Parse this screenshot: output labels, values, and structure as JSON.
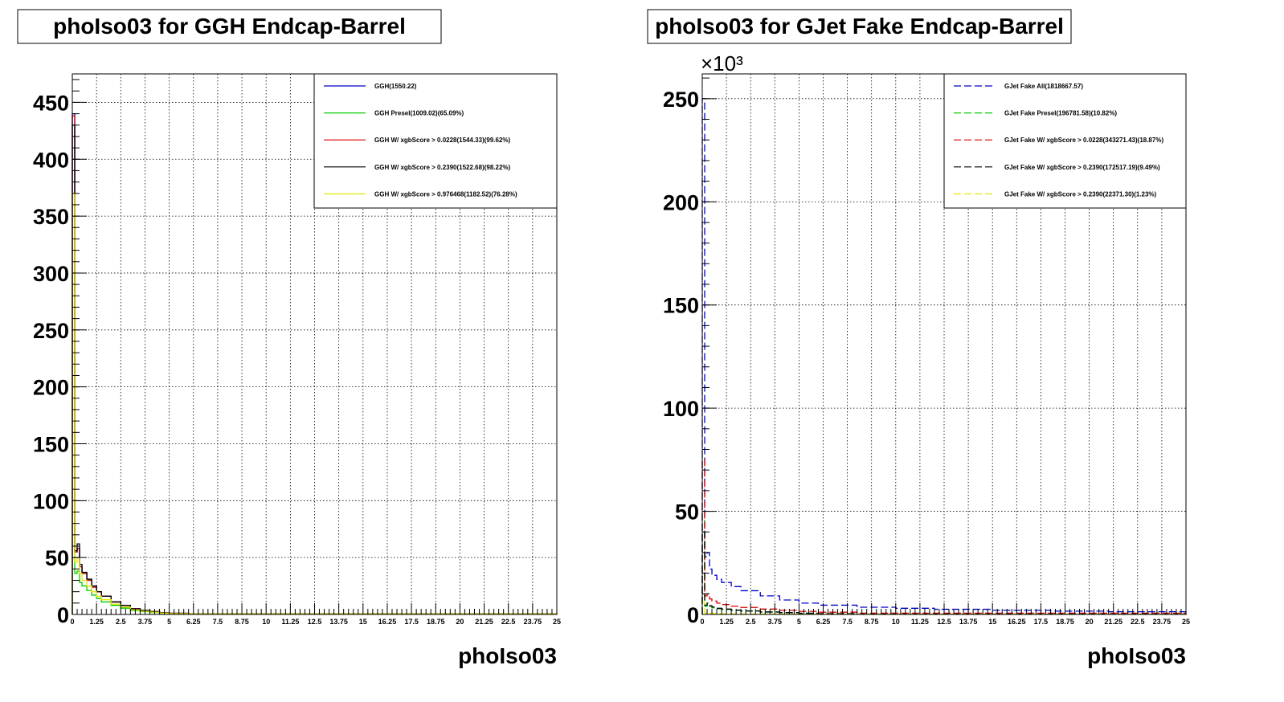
{
  "chart_data": [
    {
      "type": "line",
      "title": "phoIso03 for GGH Endcap-Barrel",
      "xlabel": "phoIso03",
      "ylabel": "",
      "xlim": [
        0,
        25
      ],
      "ylim": [
        0,
        475
      ],
      "x_ticks": [
        "0",
        "1.25",
        "2.5",
        "3.75",
        "5",
        "6.25",
        "7.5",
        "8.75",
        "10",
        "11.25",
        "12.5",
        "13.75",
        "15",
        "16.25",
        "17.5",
        "18.75",
        "20",
        "21.25",
        "22.5",
        "23.75",
        "25"
      ],
      "y_ticks": [
        "0",
        "50",
        "100",
        "150",
        "200",
        "250",
        "300",
        "350",
        "400",
        "450"
      ],
      "y_exponent": "",
      "grid": true,
      "legend_position": "top-right",
      "series": [
        {
          "name": "GGH(1550.22)",
          "color": "#0000cc",
          "style": "solid",
          "x": [
            0.0,
            0.125,
            0.25,
            0.375,
            0.5,
            0.75,
            1.0,
            1.25,
            1.5,
            2.0,
            2.5,
            3.0,
            3.5,
            4.0,
            4.5,
            5.0,
            6.0,
            25.0
          ],
          "y": [
            440,
            55,
            58,
            42,
            36,
            30,
            24,
            20,
            16,
            11,
            8,
            5,
            3.5,
            2.5,
            1.5,
            1,
            0.5,
            0
          ]
        },
        {
          "name": "GGH Presel(1009.02)(65.09%)",
          "color": "#00cc00",
          "style": "solid",
          "x": [
            0.0,
            0.125,
            0.25,
            0.375,
            0.5,
            0.75,
            1.0,
            1.25,
            1.5,
            2.0,
            2.5,
            3.0,
            3.5,
            4.0,
            4.5,
            5.0,
            6.0,
            25.0
          ],
          "y": [
            300,
            36,
            38,
            28,
            25,
            21,
            17,
            14,
            11,
            8,
            5.5,
            3.5,
            2.5,
            1.7,
            1,
            0.7,
            0.3,
            0
          ]
        },
        {
          "name": "GGH W/ xgbScore > 0.0228(1544.33)(99.62%)",
          "color": "#dd0000",
          "style": "solid",
          "x": [
            0.0,
            0.125,
            0.25,
            0.375,
            0.5,
            0.75,
            1.0,
            1.25,
            1.5,
            2.0,
            2.5,
            3.0,
            3.5,
            4.0,
            4.5,
            5.0,
            6.0,
            25.0
          ],
          "y": [
            438,
            55,
            58,
            42,
            36,
            30,
            24,
            20,
            16,
            11,
            8,
            5,
            3.5,
            2.5,
            1.5,
            1,
            0.5,
            0
          ]
        },
        {
          "name": "GGH W/ xgbScore > 0.2390(1522.68)(98.22%)",
          "color": "#000000",
          "style": "solid",
          "x": [
            0.0,
            0.125,
            0.25,
            0.375,
            0.5,
            0.75,
            1.0,
            1.25,
            1.5,
            2.0,
            2.5,
            3.0,
            3.5,
            4.0,
            4.5,
            5.0,
            6.0,
            25.0
          ],
          "y": [
            430,
            56,
            62,
            44,
            37,
            31,
            25,
            20,
            16,
            11,
            8,
            5,
            3.5,
            2.5,
            1.5,
            1,
            0.5,
            0
          ]
        },
        {
          "name": "GGH W/ xgbScore > 0.976468(1182.52)(76.28%)",
          "color": "#e6e600",
          "style": "solid",
          "x": [
            0.0,
            0.125,
            0.25,
            0.375,
            0.5,
            0.75,
            1.0,
            1.25,
            1.5,
            2.0,
            2.5,
            3.0,
            3.5,
            4.0,
            4.5,
            5.0,
            6.0,
            25.0
          ],
          "y": [
            370,
            46,
            50,
            36,
            30,
            25,
            20,
            16,
            13,
            9,
            6.5,
            4,
            2.8,
            2,
            1.2,
            0.8,
            0.4,
            0
          ]
        }
      ]
    },
    {
      "type": "line",
      "title": "phoIso03 for GJet Fake Endcap-Barrel",
      "xlabel": "phoIso03",
      "ylabel": "",
      "xlim": [
        0,
        25
      ],
      "ylim": [
        0,
        262
      ],
      "x_ticks": [
        "0",
        "1.25",
        "2.5",
        "3.75",
        "5",
        "6.25",
        "7.5",
        "8.75",
        "10",
        "11.25",
        "12.5",
        "13.75",
        "15",
        "16.25",
        "17.5",
        "18.75",
        "20",
        "21.25",
        "22.5",
        "23.75",
        "25"
      ],
      "y_ticks": [
        "0",
        "50",
        "100",
        "150",
        "200",
        "250"
      ],
      "y_exponent": "×10³",
      "grid": true,
      "legend_position": "top-right",
      "series": [
        {
          "name": "GJet Fake All(1818667.57)",
          "color": "#0000cc",
          "style": "dashed",
          "x": [
            0.0,
            0.125,
            0.25,
            0.375,
            0.5,
            0.75,
            1.0,
            1.5,
            2.0,
            3.0,
            4.0,
            5.0,
            6.0,
            8.0,
            10.0,
            12.0,
            15.0,
            18.0,
            21.0,
            25.0
          ],
          "y": [
            250,
            28,
            30,
            22,
            19,
            17,
            15.5,
            13.5,
            11.5,
            9,
            7,
            5.5,
            4.5,
            3.5,
            3,
            2.5,
            2,
            1.6,
            1.3,
            1
          ]
        },
        {
          "name": "GJet Fake Presel(196781.58)(10.82%)",
          "color": "#00cc00",
          "style": "dashed",
          "x": [
            0.0,
            0.125,
            0.25,
            0.375,
            0.5,
            0.75,
            1.0,
            1.5,
            2.0,
            3.0,
            4.0,
            5.0,
            6.0,
            8.0,
            25.0
          ],
          "y": [
            50,
            4,
            5,
            4,
            3.2,
            2.8,
            2.4,
            2,
            1.6,
            1.2,
            0.8,
            0.5,
            0.3,
            0.1,
            0
          ]
        },
        {
          "name": "GJet Fake W/ xgbScore > 0.0228(343271.43)(18.87%)",
          "color": "#dd0000",
          "style": "dashed",
          "x": [
            0.0,
            0.125,
            0.25,
            0.375,
            0.5,
            0.75,
            1.0,
            1.5,
            2.0,
            3.0,
            4.0,
            5.0,
            6.0,
            8.0,
            25.0
          ],
          "y": [
            75,
            9,
            10,
            7.5,
            6.5,
            5.5,
            4.8,
            4,
            3.4,
            2.6,
            2,
            1.5,
            1.1,
            0.6,
            0.2
          ]
        },
        {
          "name": "GJet Fake W/ xgbScore > 0.2390(172517.19)(9.49%)",
          "color": "#000000",
          "style": "dashed",
          "x": [
            0.0,
            0.125,
            0.25,
            0.375,
            0.5,
            0.75,
            1.0,
            1.5,
            2.0,
            3.0,
            4.0,
            5.0,
            6.0,
            8.0,
            25.0
          ],
          "y": [
            40,
            4.5,
            5.5,
            4.2,
            3.6,
            3,
            2.6,
            2.1,
            1.7,
            1.2,
            0.9,
            0.6,
            0.4,
            0.2,
            0
          ]
        },
        {
          "name": "GJet Fake W/ xgbScore > 0.2390(22371.30)(1.23%)",
          "color": "#e6e600",
          "style": "dashed",
          "x": [
            0.0,
            0.125,
            0.25,
            0.375,
            0.5,
            0.75,
            1.0,
            1.5,
            2.0,
            3.0,
            4.0,
            5.0,
            25.0
          ],
          "y": [
            6,
            0.6,
            0.8,
            0.6,
            0.5,
            0.4,
            0.35,
            0.3,
            0.25,
            0.18,
            0.12,
            0.08,
            0
          ]
        }
      ]
    }
  ]
}
